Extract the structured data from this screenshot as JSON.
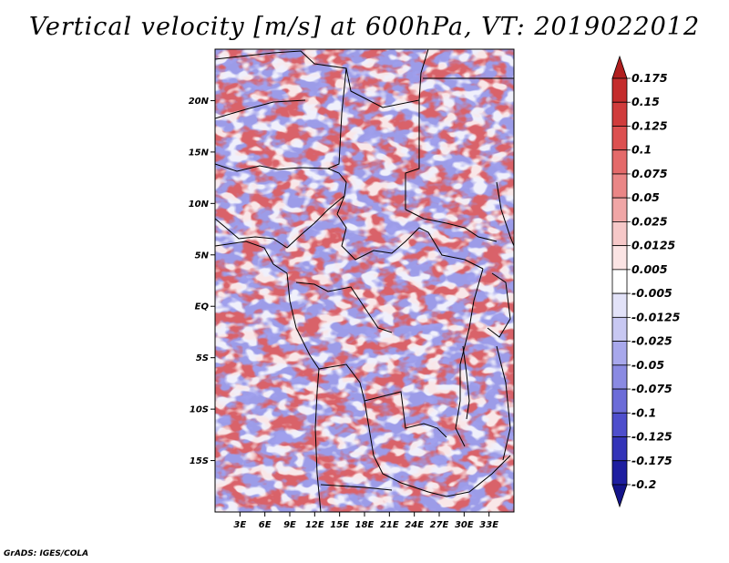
{
  "title": "Vertical velocity [m/s] at 600hPa, VT: 2019022012",
  "credit": "GrADS: IGES/COLA",
  "map": {
    "lon_range": [
      0,
      36
    ],
    "lat_range": [
      -20,
      25
    ],
    "lat_ticks": [
      "20N",
      "15N",
      "10N",
      "5N",
      "EQ",
      "5S",
      "10S",
      "15S"
    ],
    "lat_values": [
      20,
      15,
      10,
      5,
      0,
      -5,
      -10,
      -15
    ],
    "lon_ticks": [
      "3E",
      "6E",
      "9E",
      "12E",
      "15E",
      "18E",
      "21E",
      "24E",
      "27E",
      "30E",
      "33E"
    ],
    "lon_values": [
      3,
      6,
      9,
      12,
      15,
      18,
      21,
      24,
      27,
      30,
      33
    ]
  },
  "colorbar": {
    "labels": [
      "0.175",
      "0.15",
      "0.125",
      "0.1",
      "0.075",
      "0.05",
      "0.025",
      "0.0125",
      "0.005",
      "-0.005",
      "-0.0125",
      "-0.025",
      "-0.05",
      "-0.075",
      "-0.1",
      "-0.125",
      "-0.175",
      "-0.2"
    ],
    "colors": [
      "#b01e1e",
      "#c42c2c",
      "#d03c3c",
      "#dc5050",
      "#e46a6a",
      "#ea8686",
      "#f0a6a6",
      "#f6c8c8",
      "#fbe4e4",
      "#ffffff",
      "#e2e2f8",
      "#c8c8f2",
      "#a8a8ec",
      "#8a8ae2",
      "#6c6cd8",
      "#4e4ecc",
      "#3434b8",
      "#1e1ea0",
      "#14148a"
    ]
  }
}
